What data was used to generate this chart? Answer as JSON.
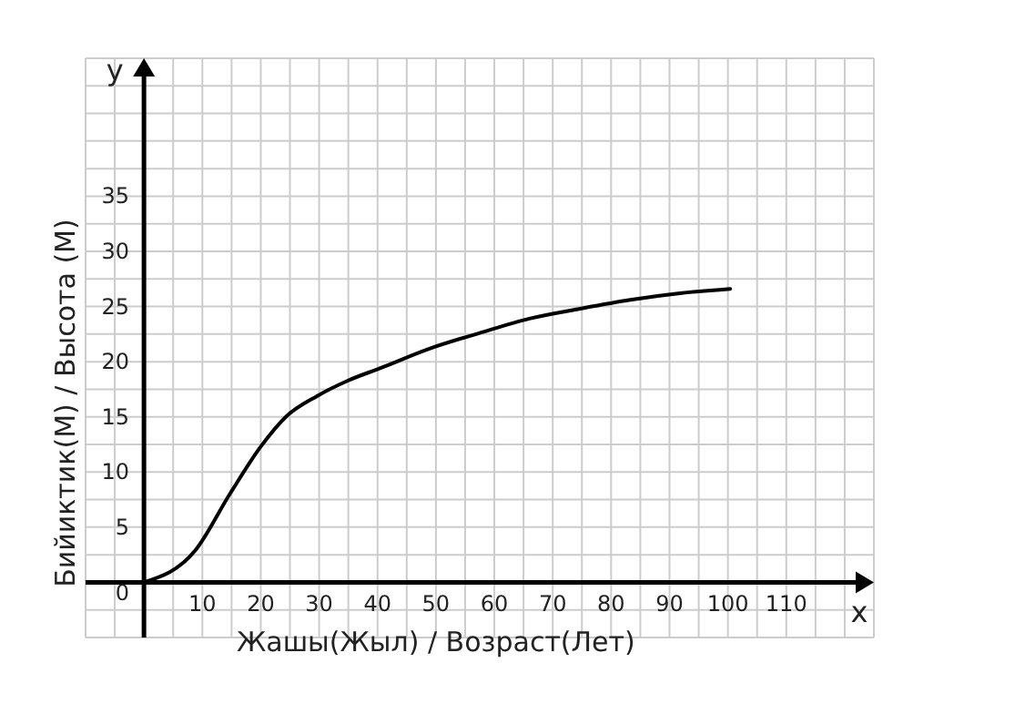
{
  "chart_data": {
    "type": "line",
    "xlabel": "Жашы(Жыл) / Возраст(Лет)",
    "ylabel": "Бийиктик(М) / Высота (М)",
    "annotations": [
      "x",
      "y"
    ],
    "x": [
      0,
      8.8,
      14.7,
      20,
      24.3,
      29.7,
      35,
      40.4,
      49,
      57.5,
      66,
      74.7,
      83.3,
      91.8,
      100.4
    ],
    "values": [
      0,
      2.9,
      8,
      12.3,
      15,
      16.9,
      18.3,
      19.4,
      21.2,
      22.6,
      23.9,
      24.8,
      25.6,
      26.2,
      26.6
    ],
    "color": "#000000",
    "xlim": [
      -10,
      125
    ],
    "ylim": [
      -5,
      47.5
    ],
    "xticks": [
      10,
      20,
      30,
      40,
      50,
      60,
      70,
      80,
      90,
      100,
      110
    ],
    "yticks": [
      {
        "value": 0,
        "label": "0"
      },
      5,
      10,
      15,
      20,
      25,
      30,
      35
    ],
    "grid": true,
    "marker": "none",
    "line_style": "solid"
  }
}
